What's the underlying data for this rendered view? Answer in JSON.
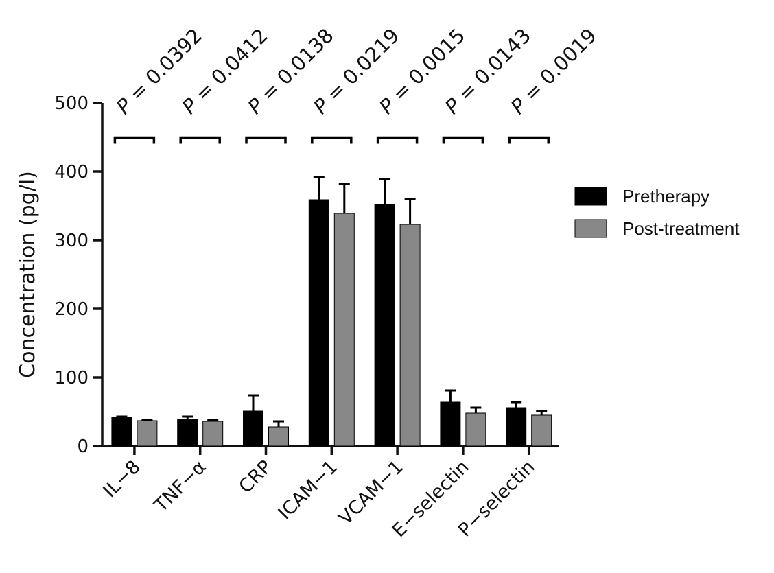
{
  "chart_data": {
    "type": "bar",
    "ylabel": "Concentration (pg/l)",
    "ylim": [
      0,
      500
    ],
    "yticks": [
      0,
      100,
      200,
      300,
      400,
      500
    ],
    "categories": [
      "IL−8",
      "TNF−α",
      "CRP",
      "ICAM−1",
      "VCAM−1",
      "E−selectin",
      "P−selectin"
    ],
    "series": [
      {
        "name": "Pretherapy",
        "color": "#000000",
        "values": [
          42,
          39,
          51,
          359,
          352,
          64,
          56
        ],
        "errors": [
          1,
          4,
          23,
          33,
          37,
          17,
          8
        ]
      },
      {
        "name": "Post-treatment",
        "color": "#888888",
        "values": [
          37,
          36,
          28,
          339,
          323,
          48,
          45
        ],
        "errors": [
          1,
          2,
          8,
          43,
          37,
          8,
          6
        ]
      }
    ],
    "p_values": [
      {
        "prefix": "P",
        "text": " = 0.0392"
      },
      {
        "prefix": "P",
        "text": " = 0.0412"
      },
      {
        "prefix": "P",
        "text": " = 0.0138"
      },
      {
        "prefix": "P",
        "text": " = 0.0219"
      },
      {
        "prefix": "P",
        "text": " = 0.0015"
      },
      {
        "prefix": "P",
        "text": " = 0.0143"
      },
      {
        "prefix": "P",
        "text": " = 0.0019"
      }
    ],
    "bracket_level": 450,
    "legend_position": "right"
  }
}
